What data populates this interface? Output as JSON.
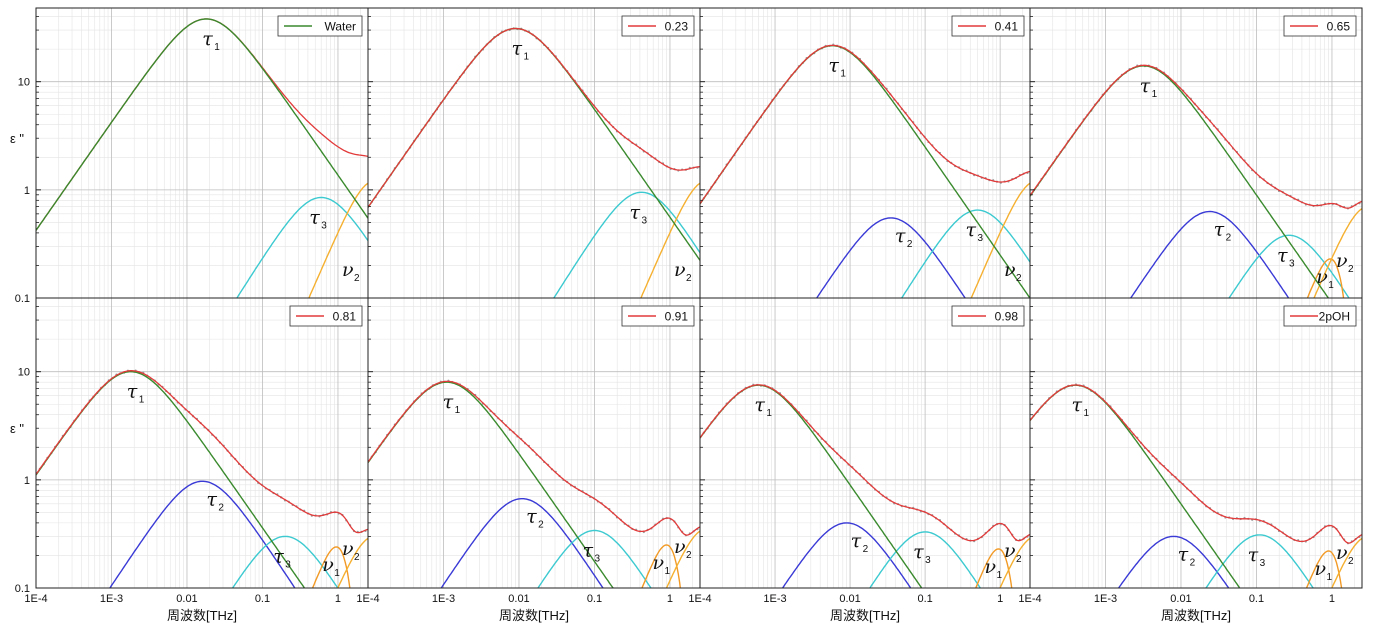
{
  "chart_data": {
    "type": "line",
    "layout": "2x4 grid of log-log panels sharing axes",
    "x_scale": "log",
    "y_scale": "log",
    "xlim": [
      0.0001,
      2.5
    ],
    "ylim": [
      0.1,
      48
    ],
    "grid": true,
    "legend_position": "top-right",
    "x_ticks": [
      "1E-4",
      "1E-3",
      "0.01",
      "0.1",
      "1"
    ],
    "y_ticks": [
      "0.1",
      "1",
      "10"
    ],
    "xlabel": "周波数[THz]",
    "ylabel": "ε \"",
    "series_colors": {
      "total": "#e23a3a",
      "tau1": "#3a8a2e",
      "tau2": "#3a3ad6",
      "tau3": "#3ccad0",
      "nu1": "#f29a26",
      "nu2": "#f5b030",
      "water": "#3a8a2e"
    },
    "symbols": {
      "tau": "τ",
      "nu": "ν",
      "sub1": "1",
      "sub2": "2",
      "sub3": "3"
    },
    "panels": [
      {
        "legend": "Water",
        "legend_color": "#3a8a2e",
        "tau1_peak": 38,
        "tau1_f": 0.018,
        "tau2": null,
        "tau3_peak": 0.85,
        "tau3_f": 0.6,
        "nu1": null,
        "nu2_peak": 1.2,
        "nu2_f": 3.0,
        "labels": [
          "tau1",
          "tau3",
          "nu2"
        ]
      },
      {
        "legend": "0.23",
        "legend_color": "#e23a3a",
        "tau1_peak": 31,
        "tau1_f": 0.009,
        "tau2": null,
        "tau3_peak": 0.95,
        "tau3_f": 0.42,
        "nu1": null,
        "nu2_peak": 1.2,
        "nu2_f": 3.0,
        "labels": [
          "tau1",
          "tau3",
          "nu2"
        ]
      },
      {
        "legend": "0.41",
        "legend_color": "#e23a3a",
        "tau1_peak": 21.5,
        "tau1_f": 0.0058,
        "tau2_peak": 0.55,
        "tau2_f": 0.035,
        "tau3_peak": 0.65,
        "tau3_f": 0.5,
        "nu1": null,
        "nu2_peak": 1.2,
        "nu2_f": 3.0,
        "labels": [
          "tau1",
          "tau2",
          "tau3",
          "nu2"
        ]
      },
      {
        "legend": "0.65",
        "legend_color": "#e23a3a",
        "tau1_peak": 14,
        "tau1_f": 0.0032,
        "tau2_peak": 0.63,
        "tau2_f": 0.024,
        "tau3_peak": 0.38,
        "tau3_f": 0.27,
        "nu1_peak": 0.23,
        "nu1_f": 0.95,
        "nu2_peak": 0.7,
        "nu2_f": 3.0,
        "labels": [
          "tau1",
          "tau2",
          "tau3",
          "nu1",
          "nu2"
        ]
      },
      {
        "legend": "0.81",
        "legend_color": "#e23a3a",
        "tau1_peak": 10,
        "tau1_f": 0.0018,
        "tau2_peak": 0.97,
        "tau2_f": 0.016,
        "tau3_peak": 0.3,
        "tau3_f": 0.2,
        "nu1_peak": 0.24,
        "nu1_f": 0.95,
        "nu2_peak": 0.3,
        "nu2_f": 3.0,
        "labels": [
          "tau1",
          "tau2",
          "tau3",
          "nu1",
          "nu2"
        ]
      },
      {
        "legend": "0.91",
        "legend_color": "#e23a3a",
        "tau1_peak": 8,
        "tau1_f": 0.0011,
        "tau2_peak": 0.67,
        "tau2_f": 0.011,
        "tau3_peak": 0.34,
        "tau3_f": 0.1,
        "nu1_peak": 0.25,
        "nu1_f": 0.9,
        "nu2_peak": 0.35,
        "nu2_f": 3.0,
        "labels": [
          "tau1",
          "tau2",
          "tau3",
          "nu1",
          "nu2"
        ]
      },
      {
        "legend": "0.98",
        "legend_color": "#e23a3a",
        "tau1_peak": 7.5,
        "tau1_f": 0.0006,
        "tau2_peak": 0.4,
        "tau2_f": 0.009,
        "tau3_peak": 0.33,
        "tau3_f": 0.1,
        "nu1_peak": 0.23,
        "nu1_f": 0.95,
        "nu2_peak": 0.3,
        "nu2_f": 3.0,
        "labels": [
          "tau1",
          "tau2",
          "tau3",
          "nu1",
          "nu2"
        ]
      },
      {
        "legend": "2pOH",
        "legend_color": "#e23a3a",
        "tau1_peak": 7.5,
        "tau1_f": 0.0004,
        "tau2_peak": 0.3,
        "tau2_f": 0.008,
        "tau3_peak": 0.31,
        "tau3_f": 0.11,
        "nu1_peak": 0.22,
        "nu1_f": 0.9,
        "nu2_peak": 0.3,
        "nu2_f": 3.0,
        "labels": [
          "tau1",
          "tau2",
          "tau3",
          "nu1",
          "nu2"
        ]
      }
    ]
  }
}
